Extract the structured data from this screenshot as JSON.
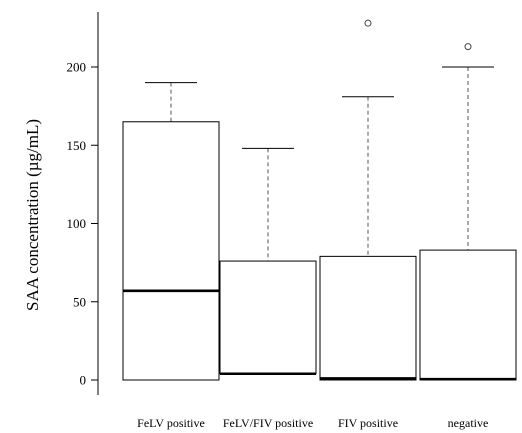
{
  "chart_data": {
    "type": "box",
    "ylabel": "SAA concentration (µg/mL)",
    "xlabel": "",
    "ylim": [
      0,
      235
    ],
    "yticks": [
      0,
      50,
      100,
      150,
      200
    ],
    "grid": false,
    "categories": [
      "FeLV positive",
      "FeLV/FIV positive",
      "FIV positive",
      "negative"
    ],
    "boxes": [
      {
        "category": "FeLV positive",
        "min": 0,
        "q1": 0,
        "median": 57,
        "q3": 165,
        "max": 190,
        "outliers": []
      },
      {
        "category": "FeLV/FIV positive",
        "min": 4,
        "q1": 4,
        "median": 4,
        "q3": 76,
        "max": 148,
        "outliers": []
      },
      {
        "category": "FIV positive",
        "min": 0,
        "q1": 0,
        "median": 1,
        "q3": 79,
        "max": 181,
        "outliers": [
          228
        ]
      },
      {
        "category": "negative",
        "min": 0,
        "q1": 0,
        "median": 0.5,
        "q3": 83,
        "max": 200,
        "outliers": [
          213
        ]
      }
    ]
  }
}
